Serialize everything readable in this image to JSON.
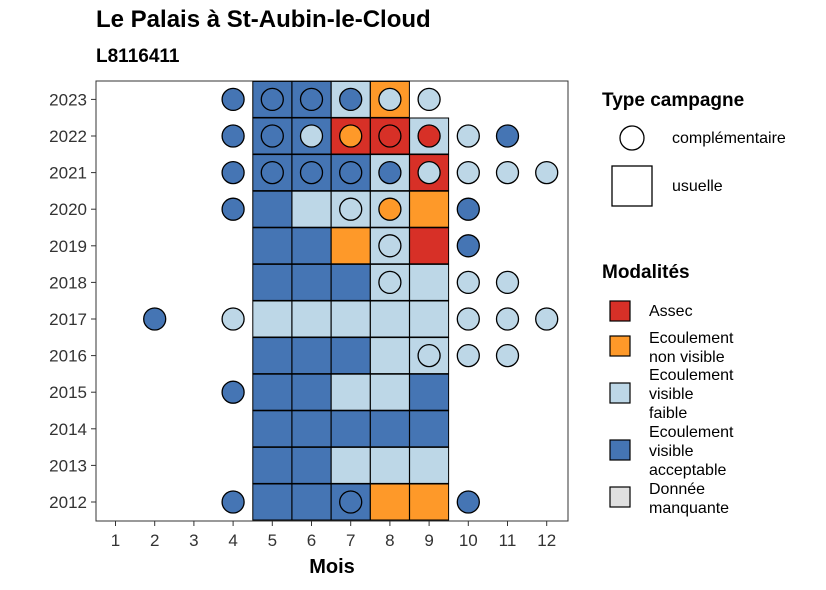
{
  "title": "Le Palais à St-Aubin-le-Cloud",
  "subtitle": "L8116411",
  "colors": {
    "assec": "#d73027",
    "non_visible": "#fe9929",
    "visible_faible": "#bdd7e7",
    "visible_acceptable": "#4575b4",
    "manquante": "#e0e0e0"
  },
  "chart_data": {
    "type": "heatmap",
    "xlabel": "Mois",
    "x_ticks": [
      "1",
      "2",
      "3",
      "4",
      "5",
      "6",
      "7",
      "8",
      "9",
      "10",
      "11",
      "12"
    ],
    "y_ticks": [
      "2012",
      "2013",
      "2014",
      "2015",
      "2016",
      "2017",
      "2018",
      "2019",
      "2020",
      "2021",
      "2022",
      "2023"
    ],
    "legend_type": {
      "title": "Type campagne",
      "items": [
        {
          "key": "complementaire",
          "label": "complémentaire",
          "shape": "circle"
        },
        {
          "key": "usuelle",
          "label": "usuelle",
          "shape": "square"
        }
      ]
    },
    "legend_modalites": {
      "title": "Modalités",
      "items": [
        {
          "key": "assec",
          "lines": [
            "Assec"
          ]
        },
        {
          "key": "non_visible",
          "lines": [
            "Ecoulement",
            "non visible"
          ]
        },
        {
          "key": "visible_faible",
          "lines": [
            "Ecoulement",
            "visible",
            "faible"
          ]
        },
        {
          "key": "visible_acceptable",
          "lines": [
            "Ecoulement",
            "visible",
            "acceptable"
          ]
        },
        {
          "key": "manquante",
          "lines": [
            "Donnée",
            "manquante"
          ]
        }
      ]
    },
    "usuelle": [
      {
        "year": 2023,
        "month": 5,
        "value": "visible_acceptable"
      },
      {
        "year": 2023,
        "month": 6,
        "value": "visible_acceptable"
      },
      {
        "year": 2023,
        "month": 7,
        "value": "visible_faible"
      },
      {
        "year": 2023,
        "month": 8,
        "value": "non_visible"
      },
      {
        "year": 2022,
        "month": 5,
        "value": "visible_acceptable"
      },
      {
        "year": 2022,
        "month": 6,
        "value": "visible_acceptable"
      },
      {
        "year": 2022,
        "month": 7,
        "value": "assec"
      },
      {
        "year": 2022,
        "month": 8,
        "value": "assec"
      },
      {
        "year": 2022,
        "month": 9,
        "value": "visible_faible"
      },
      {
        "year": 2021,
        "month": 5,
        "value": "visible_acceptable"
      },
      {
        "year": 2021,
        "month": 6,
        "value": "visible_acceptable"
      },
      {
        "year": 2021,
        "month": 7,
        "value": "visible_acceptable"
      },
      {
        "year": 2021,
        "month": 8,
        "value": "visible_faible"
      },
      {
        "year": 2021,
        "month": 9,
        "value": "assec"
      },
      {
        "year": 2020,
        "month": 5,
        "value": "visible_acceptable"
      },
      {
        "year": 2020,
        "month": 6,
        "value": "visible_faible"
      },
      {
        "year": 2020,
        "month": 7,
        "value": "visible_faible"
      },
      {
        "year": 2020,
        "month": 8,
        "value": "visible_faible"
      },
      {
        "year": 2020,
        "month": 9,
        "value": "non_visible"
      },
      {
        "year": 2019,
        "month": 5,
        "value": "visible_acceptable"
      },
      {
        "year": 2019,
        "month": 6,
        "value": "visible_acceptable"
      },
      {
        "year": 2019,
        "month": 7,
        "value": "non_visible"
      },
      {
        "year": 2019,
        "month": 8,
        "value": "visible_faible"
      },
      {
        "year": 2019,
        "month": 9,
        "value": "assec"
      },
      {
        "year": 2018,
        "month": 5,
        "value": "visible_acceptable"
      },
      {
        "year": 2018,
        "month": 6,
        "value": "visible_acceptable"
      },
      {
        "year": 2018,
        "month": 7,
        "value": "visible_acceptable"
      },
      {
        "year": 2018,
        "month": 8,
        "value": "visible_faible"
      },
      {
        "year": 2018,
        "month": 9,
        "value": "visible_faible"
      },
      {
        "year": 2017,
        "month": 5,
        "value": "visible_faible"
      },
      {
        "year": 2017,
        "month": 6,
        "value": "visible_faible"
      },
      {
        "year": 2017,
        "month": 7,
        "value": "visible_faible"
      },
      {
        "year": 2017,
        "month": 8,
        "value": "visible_faible"
      },
      {
        "year": 2017,
        "month": 9,
        "value": "visible_faible"
      },
      {
        "year": 2016,
        "month": 5,
        "value": "visible_acceptable"
      },
      {
        "year": 2016,
        "month": 6,
        "value": "visible_acceptable"
      },
      {
        "year": 2016,
        "month": 7,
        "value": "visible_acceptable"
      },
      {
        "year": 2016,
        "month": 8,
        "value": "visible_faible"
      },
      {
        "year": 2016,
        "month": 9,
        "value": "visible_faible"
      },
      {
        "year": 2015,
        "month": 5,
        "value": "visible_acceptable"
      },
      {
        "year": 2015,
        "month": 6,
        "value": "visible_acceptable"
      },
      {
        "year": 2015,
        "month": 7,
        "value": "visible_faible"
      },
      {
        "year": 2015,
        "month": 8,
        "value": "visible_faible"
      },
      {
        "year": 2015,
        "month": 9,
        "value": "visible_acceptable"
      },
      {
        "year": 2014,
        "month": 5,
        "value": "visible_acceptable"
      },
      {
        "year": 2014,
        "month": 6,
        "value": "visible_acceptable"
      },
      {
        "year": 2014,
        "month": 7,
        "value": "visible_acceptable"
      },
      {
        "year": 2014,
        "month": 8,
        "value": "visible_acceptable"
      },
      {
        "year": 2014,
        "month": 9,
        "value": "visible_acceptable"
      },
      {
        "year": 2013,
        "month": 5,
        "value": "visible_acceptable"
      },
      {
        "year": 2013,
        "month": 6,
        "value": "visible_acceptable"
      },
      {
        "year": 2013,
        "month": 7,
        "value": "visible_faible"
      },
      {
        "year": 2013,
        "month": 8,
        "value": "visible_faible"
      },
      {
        "year": 2013,
        "month": 9,
        "value": "visible_faible"
      },
      {
        "year": 2012,
        "month": 5,
        "value": "visible_acceptable"
      },
      {
        "year": 2012,
        "month": 6,
        "value": "visible_acceptable"
      },
      {
        "year": 2012,
        "month": 7,
        "value": "visible_acceptable"
      },
      {
        "year": 2012,
        "month": 8,
        "value": "non_visible"
      },
      {
        "year": 2012,
        "month": 9,
        "value": "non_visible"
      }
    ],
    "complementaire": [
      {
        "year": 2023,
        "month": 4,
        "value": "visible_acceptable"
      },
      {
        "year": 2023,
        "month": 5,
        "value": "visible_acceptable"
      },
      {
        "year": 2023,
        "month": 6,
        "value": "visible_acceptable"
      },
      {
        "year": 2023,
        "month": 7,
        "value": "visible_acceptable"
      },
      {
        "year": 2023,
        "month": 8,
        "value": "visible_faible"
      },
      {
        "year": 2023,
        "month": 9,
        "value": "visible_faible"
      },
      {
        "year": 2022,
        "month": 4,
        "value": "visible_acceptable"
      },
      {
        "year": 2022,
        "month": 5,
        "value": "visible_acceptable"
      },
      {
        "year": 2022,
        "month": 6,
        "value": "visible_faible"
      },
      {
        "year": 2022,
        "month": 7,
        "value": "non_visible"
      },
      {
        "year": 2022,
        "month": 8,
        "value": "assec"
      },
      {
        "year": 2022,
        "month": 9,
        "value": "assec"
      },
      {
        "year": 2022,
        "month": 10,
        "value": "visible_faible"
      },
      {
        "year": 2022,
        "month": 11,
        "value": "visible_acceptable"
      },
      {
        "year": 2021,
        "month": 4,
        "value": "visible_acceptable"
      },
      {
        "year": 2021,
        "month": 5,
        "value": "visible_acceptable"
      },
      {
        "year": 2021,
        "month": 6,
        "value": "visible_acceptable"
      },
      {
        "year": 2021,
        "month": 7,
        "value": "visible_acceptable"
      },
      {
        "year": 2021,
        "month": 8,
        "value": "visible_acceptable"
      },
      {
        "year": 2021,
        "month": 9,
        "value": "visible_faible"
      },
      {
        "year": 2021,
        "month": 10,
        "value": "visible_faible"
      },
      {
        "year": 2021,
        "month": 11,
        "value": "visible_faible"
      },
      {
        "year": 2021,
        "month": 12,
        "value": "visible_faible"
      },
      {
        "year": 2020,
        "month": 4,
        "value": "visible_acceptable"
      },
      {
        "year": 2020,
        "month": 7,
        "value": "visible_faible"
      },
      {
        "year": 2020,
        "month": 8,
        "value": "non_visible"
      },
      {
        "year": 2020,
        "month": 10,
        "value": "visible_acceptable"
      },
      {
        "year": 2019,
        "month": 8,
        "value": "visible_faible"
      },
      {
        "year": 2019,
        "month": 10,
        "value": "visible_acceptable"
      },
      {
        "year": 2018,
        "month": 8,
        "value": "visible_faible"
      },
      {
        "year": 2018,
        "month": 10,
        "value": "visible_faible"
      },
      {
        "year": 2018,
        "month": 11,
        "value": "visible_faible"
      },
      {
        "year": 2017,
        "month": 2,
        "value": "visible_acceptable"
      },
      {
        "year": 2017,
        "month": 4,
        "value": "visible_faible"
      },
      {
        "year": 2017,
        "month": 10,
        "value": "visible_faible"
      },
      {
        "year": 2017,
        "month": 11,
        "value": "visible_faible"
      },
      {
        "year": 2017,
        "month": 12,
        "value": "visible_faible"
      },
      {
        "year": 2016,
        "month": 9,
        "value": "visible_faible"
      },
      {
        "year": 2016,
        "month": 10,
        "value": "visible_faible"
      },
      {
        "year": 2016,
        "month": 11,
        "value": "visible_faible"
      },
      {
        "year": 2015,
        "month": 4,
        "value": "visible_acceptable"
      },
      {
        "year": 2012,
        "month": 4,
        "value": "visible_acceptable"
      },
      {
        "year": 2012,
        "month": 7,
        "value": "visible_acceptable"
      },
      {
        "year": 2012,
        "month": 10,
        "value": "visible_acceptable"
      }
    ]
  }
}
